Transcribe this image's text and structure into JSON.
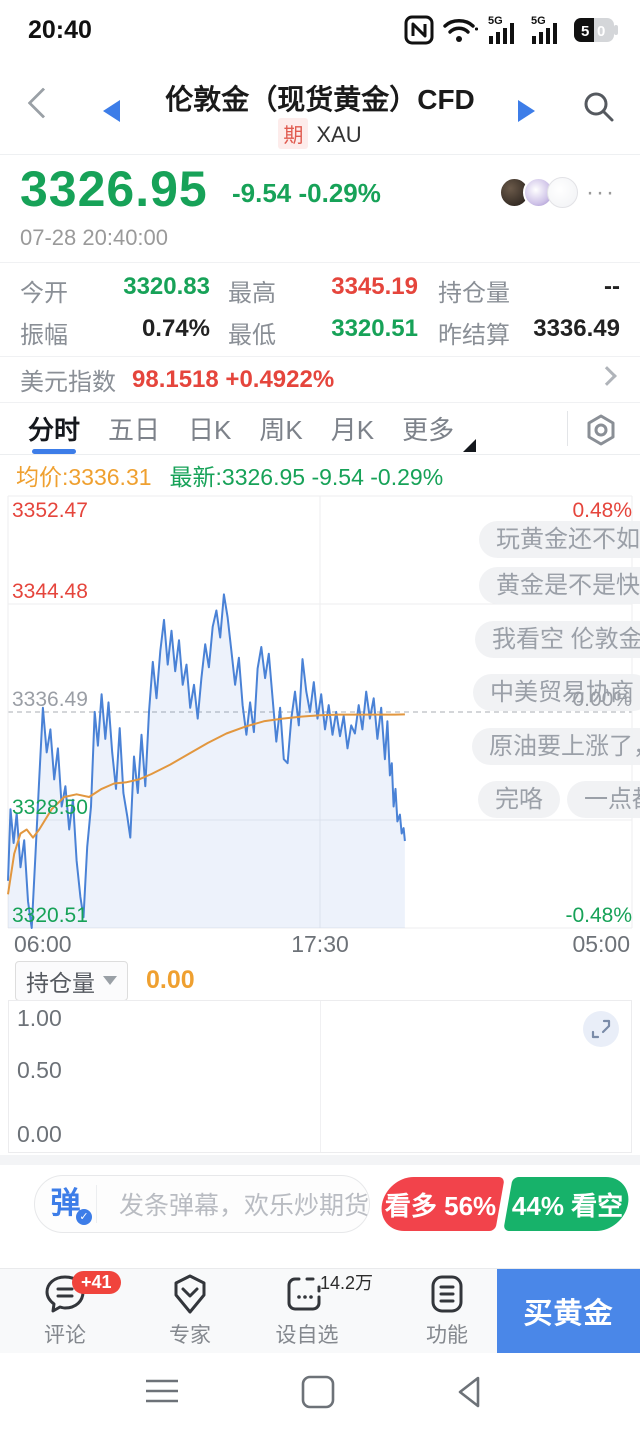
{
  "status_bar": {
    "time": "20:40",
    "battery": "50",
    "network": "5G"
  },
  "header": {
    "title": "伦敦金（现货黄金）CFD",
    "badge": "期",
    "symbol": "XAU"
  },
  "quote": {
    "price": "3326.95",
    "change": "-9.54  -0.29%",
    "timestamp": "07-28 20:40:00",
    "more": "···"
  },
  "stats": {
    "open_label": "今开",
    "open_value": "3320.83",
    "high_label": "最高",
    "high_value": "3345.19",
    "oi_label": "持仓量",
    "oi_value": "--",
    "amp_label": "振幅",
    "amp_value": "0.74%",
    "low_label": "最低",
    "low_value": "3320.51",
    "prev_label": "昨结算",
    "prev_value": "3336.49"
  },
  "usd_index": {
    "label": "美元指数",
    "value": "98.1518  +0.4922%"
  },
  "tabs": {
    "items": [
      "分时",
      "五日",
      "日K",
      "周K",
      "月K",
      "更多"
    ],
    "active": "分时"
  },
  "legend": {
    "avg": "均价:3336.31",
    "last": "最新:3326.95 -9.54 -0.29%"
  },
  "chart_labels": {
    "y_left": [
      "3352.47",
      "3344.48",
      "3336.49",
      "3328.50",
      "3320.51"
    ],
    "y_right": [
      "0.48%",
      "0.00%",
      "-0.48%"
    ],
    "x": [
      "06:00",
      "17:30",
      "05:00"
    ]
  },
  "danmaku": [
    {
      "text": "玩黄金还不如理财"
    },
    {
      "text": "黄金是不是快变盘了"
    },
    {
      "text": "我看空 伦敦金"
    },
    {
      "text": "中美贸易协商"
    },
    {
      "text": "原油要上涨了，"
    },
    {
      "text": "完咯"
    },
    {
      "text": "一点都"
    }
  ],
  "chart_data": {
    "type": "line",
    "title": "伦敦金（现货黄金）CFD 分时",
    "x_axis": {
      "labels": [
        "06:00",
        "17:30",
        "05:00"
      ],
      "range_hours": 23
    },
    "y_axis": {
      "min": 3320.51,
      "max": 3352.47,
      "gridlines": [
        3352.47,
        3344.48,
        3336.49,
        3328.5,
        3320.51
      ]
    },
    "prev_close": 3336.49,
    "day_high": 3345.19,
    "day_low": 3320.51,
    "last": 3326.95,
    "avg": 3336.31,
    "pct_labels": {
      "top": "0.48%",
      "mid": "0.00%",
      "bottom": "-0.48%"
    },
    "series": [
      {
        "name": "price",
        "color": "#4a82d6",
        "points": [
          [
            0,
            3324
          ],
          [
            0.004,
            3329.3
          ],
          [
            0.009,
            3326.8
          ],
          [
            0.014,
            3329
          ],
          [
            0.02,
            3325
          ],
          [
            0.026,
            3327
          ],
          [
            0.032,
            3322.5
          ],
          [
            0.038,
            3320.51
          ],
          [
            0.044,
            3326
          ],
          [
            0.05,
            3331.5
          ],
          [
            0.056,
            3336.8
          ],
          [
            0.062,
            3333.5
          ],
          [
            0.068,
            3335.2
          ],
          [
            0.074,
            3331.5
          ],
          [
            0.08,
            3333.8
          ],
          [
            0.086,
            3329.5
          ],
          [
            0.092,
            3331
          ],
          [
            0.098,
            3327.8
          ],
          [
            0.104,
            3330
          ],
          [
            0.11,
            3325.5
          ],
          [
            0.116,
            3322.8
          ],
          [
            0.121,
            3321.3
          ],
          [
            0.127,
            3326.5
          ],
          [
            0.133,
            3329.5
          ],
          [
            0.139,
            3336.5
          ],
          [
            0.144,
            3334
          ],
          [
            0.15,
            3337.8
          ],
          [
            0.156,
            3334.5
          ],
          [
            0.161,
            3337.2
          ],
          [
            0.167,
            3333.5
          ],
          [
            0.173,
            3330.8
          ],
          [
            0.179,
            3335.3
          ],
          [
            0.185,
            3330.5
          ],
          [
            0.191,
            3328.8
          ],
          [
            0.196,
            3327.2
          ],
          [
            0.202,
            3333.2
          ],
          [
            0.208,
            3330.5
          ],
          [
            0.214,
            3334.8
          ],
          [
            0.22,
            3331
          ],
          [
            0.226,
            3336.5
          ],
          [
            0.232,
            3340.2
          ],
          [
            0.238,
            3337.5
          ],
          [
            0.244,
            3341
          ],
          [
            0.25,
            3343.3
          ],
          [
            0.256,
            3340
          ],
          [
            0.262,
            3342.5
          ],
          [
            0.268,
            3339.5
          ],
          [
            0.274,
            3341.8
          ],
          [
            0.28,
            3338.5
          ],
          [
            0.286,
            3340
          ],
          [
            0.292,
            3336.8
          ],
          [
            0.298,
            3338.5
          ],
          [
            0.304,
            3336
          ],
          [
            0.31,
            3339
          ],
          [
            0.316,
            3341.5
          ],
          [
            0.322,
            3339.8
          ],
          [
            0.328,
            3342.8
          ],
          [
            0.334,
            3344
          ],
          [
            0.34,
            3342
          ],
          [
            0.346,
            3345.19
          ],
          [
            0.352,
            3343.5
          ],
          [
            0.358,
            3341
          ],
          [
            0.364,
            3338.5
          ],
          [
            0.37,
            3340.5
          ],
          [
            0.376,
            3337
          ],
          [
            0.382,
            3334.8
          ],
          [
            0.388,
            3337.2
          ],
          [
            0.394,
            3335
          ],
          [
            0.4,
            3339.7
          ],
          [
            0.406,
            3341.3
          ],
          [
            0.412,
            3339
          ],
          [
            0.418,
            3340.8
          ],
          [
            0.424,
            3337.5
          ],
          [
            0.43,
            3334.3
          ],
          [
            0.436,
            3336.8
          ],
          [
            0.442,
            3333
          ],
          [
            0.448,
            3332.7
          ],
          [
            0.454,
            3336
          ],
          [
            0.46,
            3338
          ],
          [
            0.466,
            3335.5
          ],
          [
            0.472,
            3340.4
          ],
          [
            0.478,
            3338
          ],
          [
            0.484,
            3336.5
          ],
          [
            0.49,
            3338.7
          ],
          [
            0.496,
            3336
          ],
          [
            0.502,
            3337.8
          ],
          [
            0.508,
            3335.2
          ],
          [
            0.514,
            3337
          ],
          [
            0.52,
            3334.8
          ],
          [
            0.526,
            3336.5
          ],
          [
            0.532,
            3334.7
          ],
          [
            0.538,
            3336.2
          ],
          [
            0.544,
            3333.8
          ],
          [
            0.55,
            3335.5
          ],
          [
            0.556,
            3334.9
          ],
          [
            0.562,
            3337
          ],
          [
            0.568,
            3335.2
          ],
          [
            0.574,
            3338
          ],
          [
            0.58,
            3336
          ],
          [
            0.586,
            3337.5
          ],
          [
            0.592,
            3334.5
          ],
          [
            0.598,
            3336.8
          ],
          [
            0.604,
            3333
          ],
          [
            0.608,
            3335.8
          ],
          [
            0.612,
            3331.8
          ],
          [
            0.615,
            3332.7
          ],
          [
            0.618,
            3329.5
          ],
          [
            0.621,
            3330.8
          ],
          [
            0.624,
            3328.4
          ],
          [
            0.628,
            3328.9
          ],
          [
            0.631,
            3327.5
          ],
          [
            0.634,
            3327.9
          ],
          [
            0.636,
            3326.95
          ]
        ]
      },
      {
        "name": "avg",
        "color": "#e2973f",
        "points": [
          [
            0,
            3323
          ],
          [
            0.01,
            3326
          ],
          [
            0.02,
            3327.5
          ],
          [
            0.03,
            3327.8
          ],
          [
            0.04,
            3327.2
          ],
          [
            0.05,
            3327.8
          ],
          [
            0.07,
            3329.3
          ],
          [
            0.09,
            3330.2
          ],
          [
            0.11,
            3330.4
          ],
          [
            0.13,
            3330.2
          ],
          [
            0.15,
            3330.8
          ],
          [
            0.17,
            3331.2
          ],
          [
            0.19,
            3331.3
          ],
          [
            0.21,
            3331.5
          ],
          [
            0.23,
            3331.9
          ],
          [
            0.26,
            3332.6
          ],
          [
            0.29,
            3333.4
          ],
          [
            0.32,
            3334.2
          ],
          [
            0.35,
            3334.9
          ],
          [
            0.38,
            3335.4
          ],
          [
            0.41,
            3335.8
          ],
          [
            0.44,
            3336
          ],
          [
            0.47,
            3336.15
          ],
          [
            0.5,
            3336.25
          ],
          [
            0.53,
            3336.3
          ],
          [
            0.56,
            3336.3
          ],
          [
            0.59,
            3336.3
          ],
          [
            0.62,
            3336.3
          ],
          [
            0.636,
            3336.31
          ]
        ]
      }
    ]
  },
  "sub_chart": {
    "selector": "持仓量",
    "value": "0.00",
    "y_labels": [
      "1.00",
      "0.50",
      "0.00"
    ]
  },
  "comment_bar": {
    "icon_label": "弹",
    "check": "✓",
    "placeholder": "发条弹幕，欢乐炒期货",
    "bull": "看多 56%",
    "bear": "44% 看空"
  },
  "bottom_nav": {
    "items": [
      {
        "label": "评论",
        "badge": "+41"
      },
      {
        "label": "专家"
      },
      {
        "label": "设自选",
        "note": "14.2万"
      },
      {
        "label": "功能"
      }
    ],
    "cta": "买黄金"
  },
  "colors": {
    "up_red": "#e5453c",
    "down_green": "#17a258",
    "accent_blue": "#3d7de8",
    "avg_orange": "#e2973f",
    "value_orange": "#efa030"
  }
}
